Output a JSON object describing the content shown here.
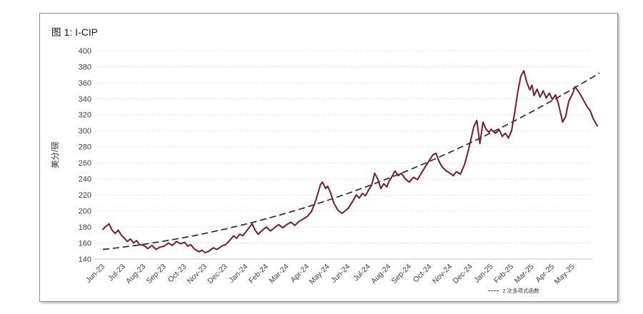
{
  "figure": {
    "title": "图 1: I-CIP",
    "y_axis_title": "美分/磅",
    "legend": {
      "label": "2 次多项式函数"
    }
  },
  "colors": {
    "series": "#721c2c",
    "trend": "#2b2b2b",
    "grid_dotted": "#d5d5d5",
    "axis_line": "#bfbfbf",
    "tick_text": "#404040",
    "frame_border": "#8f8f8f"
  },
  "chart_data": {
    "type": "line",
    "title": "图 1: I-CIP",
    "xlabel": "",
    "ylabel": "美分/磅",
    "ylim": [
      140,
      400
    ],
    "y_ticks": [
      140,
      160,
      180,
      200,
      220,
      240,
      260,
      280,
      300,
      320,
      340,
      360,
      380,
      400
    ],
    "x_tick_labels": [
      "Jun-23",
      "Jul-23",
      "Aug-23",
      "Sep-23",
      "Oct-23",
      "Nov-23",
      "Dec-23",
      "Jan-24",
      "Feb-24",
      "Mar-24",
      "Apr-24",
      "May-24",
      "Jun-24",
      "Jul-24",
      "Aug-24",
      "Sep-24",
      "Oct-24",
      "Nov-24",
      "Dec-24",
      "Jan-25",
      "Feb-25",
      "Mar-25",
      "Apr-25",
      "May-25"
    ],
    "grid": "horizontal dotted lines, solid baseline at 140",
    "legend_position": "bottom-right",
    "series": [
      {
        "name": "I-CIP",
        "style": "solid",
        "color": "#721c2c",
        "x_unit_note": "t = months after Jun-2023; tick k sits at t=k",
        "points": [
          [
            0,
            177
          ],
          [
            0.15,
            181
          ],
          [
            0.3,
            184
          ],
          [
            0.45,
            176
          ],
          [
            0.6,
            172
          ],
          [
            0.75,
            176
          ],
          [
            0.9,
            170
          ],
          [
            1.05,
            166
          ],
          [
            1.2,
            162
          ],
          [
            1.35,
            165
          ],
          [
            1.5,
            160
          ],
          [
            1.65,
            163
          ],
          [
            1.8,
            158
          ],
          [
            2,
            157
          ],
          [
            2.2,
            153
          ],
          [
            2.4,
            157
          ],
          [
            2.6,
            152
          ],
          [
            2.8,
            155
          ],
          [
            3,
            156
          ],
          [
            3.2,
            160
          ],
          [
            3.4,
            157
          ],
          [
            3.6,
            162
          ],
          [
            3.8,
            159
          ],
          [
            4,
            161
          ],
          [
            4.15,
            156
          ],
          [
            4.3,
            158
          ],
          [
            4.5,
            152
          ],
          [
            4.7,
            149
          ],
          [
            4.85,
            151
          ],
          [
            5,
            148
          ],
          [
            5.2,
            150
          ],
          [
            5.4,
            154
          ],
          [
            5.6,
            152
          ],
          [
            5.8,
            156
          ],
          [
            6,
            158
          ],
          [
            6.2,
            163
          ],
          [
            6.4,
            169
          ],
          [
            6.55,
            166
          ],
          [
            6.7,
            171
          ],
          [
            6.85,
            169
          ],
          [
            7,
            174
          ],
          [
            7.15,
            179
          ],
          [
            7.3,
            184
          ],
          [
            7.45,
            176
          ],
          [
            7.6,
            171
          ],
          [
            7.8,
            176
          ],
          [
            8,
            180
          ],
          [
            8.2,
            175
          ],
          [
            8.4,
            179
          ],
          [
            8.6,
            183
          ],
          [
            8.8,
            179
          ],
          [
            9,
            183
          ],
          [
            9.2,
            186
          ],
          [
            9.4,
            182
          ],
          [
            9.6,
            187
          ],
          [
            9.8,
            190
          ],
          [
            10,
            193
          ],
          [
            10.2,
            199
          ],
          [
            10.35,
            208
          ],
          [
            10.5,
            220
          ],
          [
            10.65,
            233
          ],
          [
            10.75,
            236
          ],
          [
            10.9,
            228
          ],
          [
            11,
            231
          ],
          [
            11.15,
            222
          ],
          [
            11.3,
            210
          ],
          [
            11.5,
            201
          ],
          [
            11.7,
            197
          ],
          [
            11.85,
            200
          ],
          [
            12,
            203
          ],
          [
            12.2,
            211
          ],
          [
            12.4,
            220
          ],
          [
            12.55,
            216
          ],
          [
            12.7,
            222
          ],
          [
            12.85,
            219
          ],
          [
            13,
            226
          ],
          [
            13.15,
            232
          ],
          [
            13.3,
            247
          ],
          [
            13.45,
            240
          ],
          [
            13.6,
            228
          ],
          [
            13.75,
            234
          ],
          [
            13.9,
            230
          ],
          [
            14,
            237
          ],
          [
            14.15,
            243
          ],
          [
            14.3,
            250
          ],
          [
            14.45,
            244
          ],
          [
            14.6,
            247
          ],
          [
            14.8,
            240
          ],
          [
            15,
            236
          ],
          [
            15.2,
            242
          ],
          [
            15.4,
            239
          ],
          [
            15.6,
            248
          ],
          [
            15.8,
            256
          ],
          [
            16,
            264
          ],
          [
            16.15,
            270
          ],
          [
            16.3,
            272
          ],
          [
            16.45,
            262
          ],
          [
            16.6,
            255
          ],
          [
            16.8,
            250
          ],
          [
            17,
            247
          ],
          [
            17.15,
            244
          ],
          [
            17.3,
            249
          ],
          [
            17.5,
            246
          ],
          [
            17.7,
            258
          ],
          [
            17.85,
            272
          ],
          [
            18,
            288
          ],
          [
            18.15,
            305
          ],
          [
            18.3,
            313
          ],
          [
            18.45,
            284
          ],
          [
            18.6,
            311
          ],
          [
            18.75,
            302
          ],
          [
            18.9,
            298
          ],
          [
            19,
            302
          ],
          [
            19.2,
            297
          ],
          [
            19.4,
            301
          ],
          [
            19.55,
            293
          ],
          [
            19.7,
            297
          ],
          [
            19.85,
            291
          ],
          [
            20,
            300
          ],
          [
            20.15,
            322
          ],
          [
            20.3,
            348
          ],
          [
            20.45,
            368
          ],
          [
            20.6,
            375
          ],
          [
            20.75,
            360
          ],
          [
            20.9,
            351
          ],
          [
            21,
            357
          ],
          [
            21.1,
            344
          ],
          [
            21.25,
            352
          ],
          [
            21.4,
            342
          ],
          [
            21.55,
            350
          ],
          [
            21.7,
            341
          ],
          [
            21.85,
            347
          ],
          [
            22,
            339
          ],
          [
            22.15,
            345
          ],
          [
            22.3,
            333
          ],
          [
            22.5,
            311
          ],
          [
            22.65,
            318
          ],
          [
            22.8,
            337
          ],
          [
            23,
            347
          ],
          [
            23.1,
            355
          ],
          [
            23.25,
            350
          ],
          [
            23.4,
            344
          ],
          [
            23.55,
            337
          ],
          [
            23.7,
            330
          ],
          [
            23.85,
            325
          ],
          [
            24,
            315
          ],
          [
            24.2,
            306
          ]
        ]
      },
      {
        "name": "2 次多项式函数",
        "style": "dashed",
        "color": "#2b2b2b",
        "trend_poly": {
          "a": 0.2618,
          "b": 2.6917,
          "c": 152
        },
        "t_range": [
          0,
          24.3
        ]
      }
    ]
  }
}
